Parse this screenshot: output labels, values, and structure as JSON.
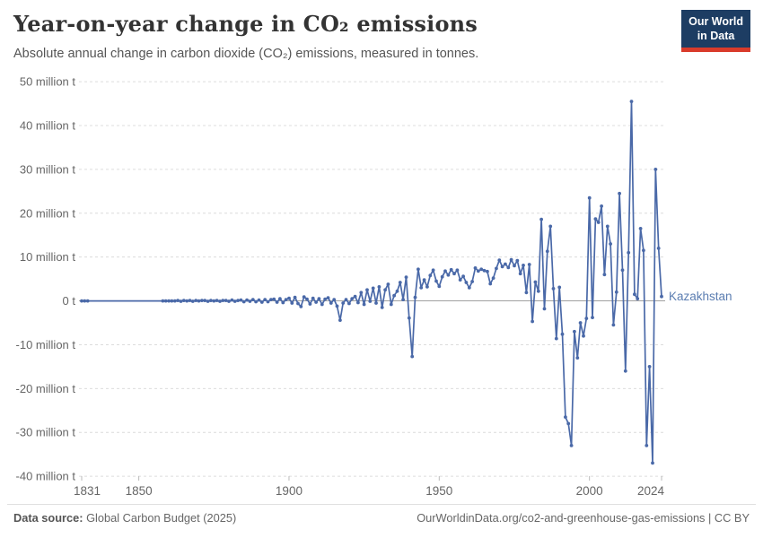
{
  "header": {
    "title": "Year-on-year change in CO₂ emissions",
    "subtitle": "Absolute annual change in carbon dioxide (CO₂) emissions, measured in tonnes.",
    "logo": {
      "line1": "Our World",
      "line2": "in Data"
    }
  },
  "footer": {
    "datasource_label": "Data source:",
    "datasource_value": "Global Carbon Budget (2025)",
    "link_text": "OurWorldinData.org/co2-and-greenhouse-gas-emissions | CC BY"
  },
  "colors": {
    "series_blue": "#4a69a8",
    "entity_label": "#5b7db1",
    "grid": "#dcdcdc",
    "zero_line": "#a1a1a1",
    "tick_text": "#666666",
    "logo_navy": "#1d3d63",
    "logo_red": "#d93b2b"
  },
  "chart_data": {
    "type": "line",
    "title": "Year-on-year change in CO₂ emissions",
    "subtitle": "Absolute annual change in carbon dioxide (CO₂) emissions, measured in tonnes.",
    "unit": "t",
    "entity_label": "Kazakhstan",
    "xlim": [
      1831,
      2024
    ],
    "ylim": [
      -40,
      50
    ],
    "x_ticks": [
      1831,
      1850,
      1900,
      1950,
      2000,
      2024
    ],
    "y_ticks": [
      {
        "value": 50,
        "label": "50 million t"
      },
      {
        "value": 40,
        "label": "40 million t"
      },
      {
        "value": 30,
        "label": "30 million t"
      },
      {
        "value": 20,
        "label": "20 million t"
      },
      {
        "value": 10,
        "label": "10 million t"
      },
      {
        "value": 0,
        "label": "0 t"
      },
      {
        "value": -10,
        "label": "-10 million t"
      },
      {
        "value": -20,
        "label": "-20 million t"
      },
      {
        "value": -30,
        "label": "-30 million t"
      },
      {
        "value": -40,
        "label": "-40 million t"
      }
    ],
    "grid": "horizontal-dashed",
    "zero_line": true,
    "legend_position": "right-of-last-point",
    "marker_gap_years": [
      1834,
      1857
    ],
    "series": [
      {
        "name": "Kazakhstan",
        "color": "#4a69a8",
        "start_year": 1831,
        "end_year": 2024,
        "unit": "million tonnes",
        "values": [
          0,
          0,
          0,
          0,
          0,
          0,
          0,
          0,
          0,
          0,
          0,
          0,
          0,
          0,
          0,
          0,
          0,
          0,
          0,
          0,
          0,
          0,
          0,
          0,
          0,
          0,
          0,
          0,
          0,
          0,
          0,
          0,
          0.1,
          -0.1,
          0.1,
          0,
          0.1,
          -0.1,
          0.1,
          0,
          0.1,
          0.1,
          -0.1,
          0.1,
          0,
          0.1,
          -0.1,
          0.1,
          0.1,
          -0.1,
          0.2,
          -0.1,
          0.1,
          0.2,
          -0.2,
          0.2,
          -0.1,
          0.3,
          -0.2,
          0.2,
          -0.3,
          0.3,
          -0.2,
          0.3,
          0.4,
          -0.3,
          0.5,
          -0.4,
          0.3,
          0.6,
          -0.5,
          0.8,
          -0.6,
          -1.3,
          0.9,
          0.4,
          -0.7,
          0.6,
          -0.3,
          0.5,
          -0.8,
          0.4,
          0.7,
          -0.5,
          0.3,
          -1.2,
          -4.4,
          -0.5,
          0.3,
          -0.6,
          0.5,
          1.0,
          -0.4,
          1.9,
          -0.8,
          2.5,
          -0.1,
          2.9,
          -0.5,
          3.2,
          -1.5,
          2.5,
          3.8,
          -0.8,
          1.2,
          2.2,
          4.2,
          0.3,
          5.4,
          -3.9,
          -12.7,
          0.8,
          7.2,
          3.0,
          4.8,
          3.2,
          5.8,
          7.0,
          4.5,
          3.3,
          5.5,
          6.8,
          5.9,
          7.1,
          6.2,
          7.0,
          4.8,
          5.6,
          4.2,
          3.0,
          4.4,
          7.5,
          6.8,
          7.2,
          6.9,
          6.7,
          3.9,
          5.2,
          7.4,
          9.3,
          7.8,
          8.4,
          7.6,
          9.4,
          8.0,
          9.2,
          6.2,
          8.1,
          1.9,
          8.3,
          -4.7,
          4.3,
          2.2,
          18.6,
          -1.8,
          11.3,
          17.0,
          2.8,
          -8.6,
          3.1,
          -7.6,
          -26.5,
          -28.0,
          -33.0,
          -7.0,
          -13.0,
          -5.0,
          -8.0,
          -4.0,
          23.5,
          -3.8,
          18.7,
          17.9,
          21.6,
          6.0,
          17.0,
          13.0,
          -5.5,
          2.0,
          24.5,
          7.0,
          -16.0,
          11.0,
          45.5,
          1.5,
          0.5,
          16.5,
          11.5,
          -33.0,
          -15.0,
          -37.0,
          30.0,
          12.0,
          1.0
        ]
      }
    ]
  }
}
